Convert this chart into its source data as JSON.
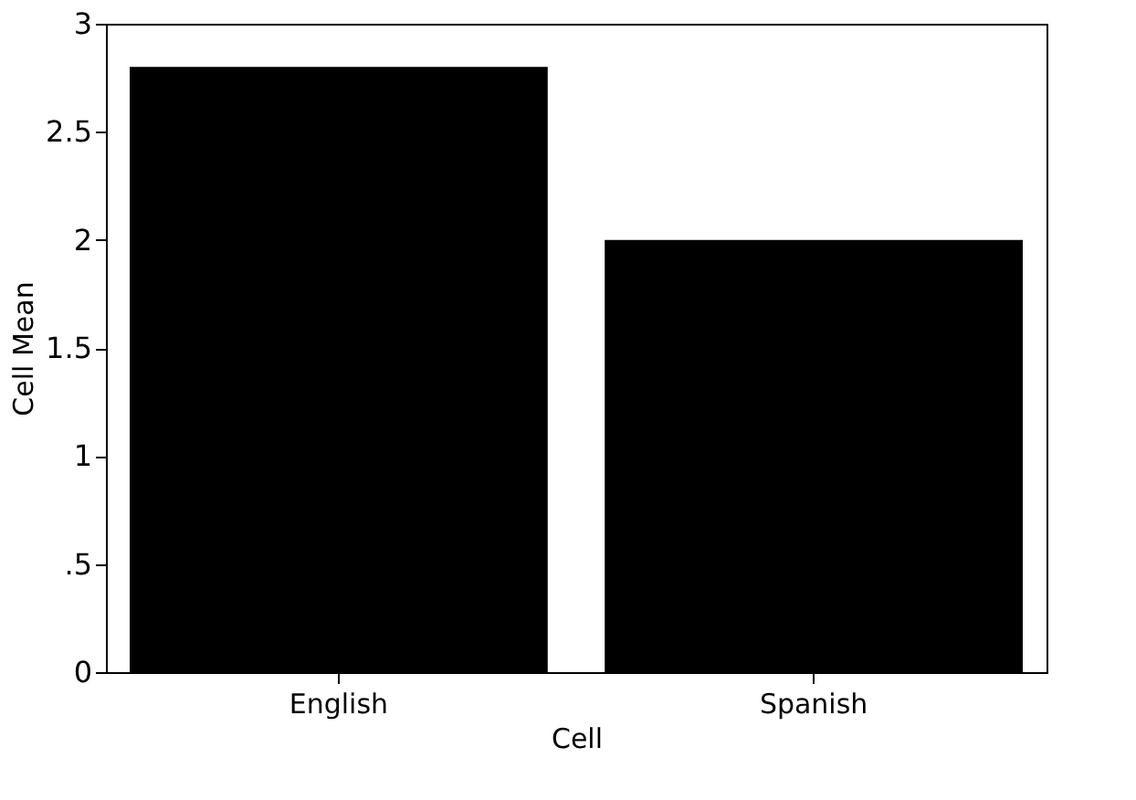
{
  "chart_data": {
    "type": "bar",
    "xlabel": "Cell",
    "ylabel": "Cell Mean",
    "categories": [
      "English",
      "Spanish"
    ],
    "values": [
      2.8,
      2.0
    ],
    "color": "#000000",
    "ylim": [
      0,
      3
    ],
    "yticks": [
      0,
      {
        "value": 0.5,
        "label": ".5"
      },
      1,
      1.5,
      2,
      2.5,
      3
    ],
    "grid": false
  }
}
